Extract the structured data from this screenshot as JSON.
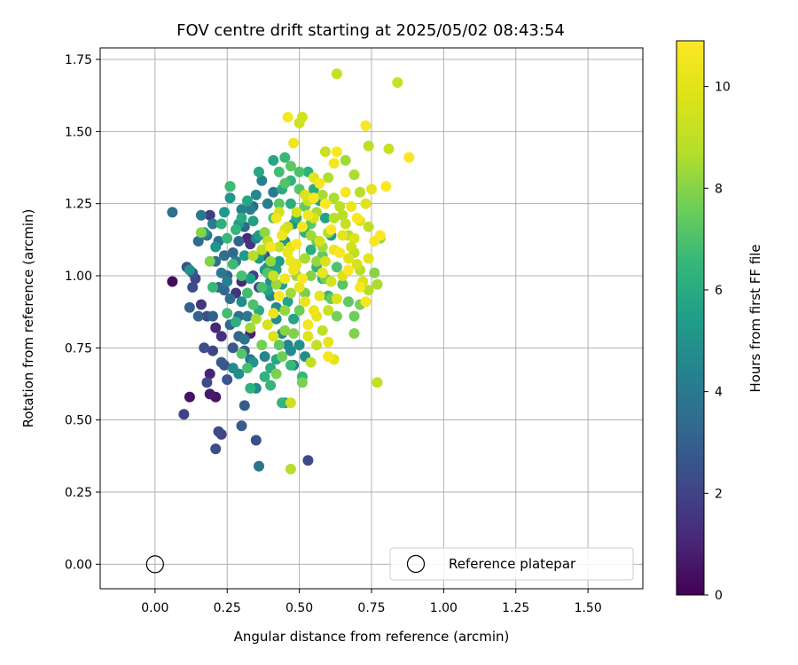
{
  "chart_data": {
    "type": "scatter",
    "title": "FOV centre drift starting at 2025/05/02 08:43:54",
    "xlabel": "Angular distance from reference (arcmin)",
    "ylabel": "Rotation from reference (arcmin)",
    "xlim": [
      -0.19,
      1.69
    ],
    "ylim": [
      -0.085,
      1.79
    ],
    "x_ticks": [
      "0.00",
      "0.25",
      "0.50",
      "0.75",
      "1.00",
      "1.25",
      "1.50"
    ],
    "y_ticks": [
      "0.00",
      "0.25",
      "0.50",
      "0.75",
      "1.00",
      "1.25",
      "1.50",
      "1.75"
    ],
    "grid": true,
    "colorbar": {
      "label": "Hours from first FF file",
      "range": [
        0,
        10.9
      ],
      "ticks": [
        "0",
        "2",
        "4",
        "6",
        "8",
        "10"
      ],
      "colormap": "viridis"
    },
    "legend": {
      "placement": "lower-right",
      "entries": [
        {
          "label": "Reference platepar",
          "marker": "open-circle",
          "color": "#000000"
        }
      ]
    },
    "reference_point": {
      "x": 0.0,
      "y": 0.0
    },
    "points": [
      [
        0.06,
        0.98,
        0.3
      ],
      [
        0.12,
        0.58,
        0.5
      ],
      [
        0.19,
        0.59,
        0.7
      ],
      [
        0.21,
        0.58,
        0.6
      ],
      [
        0.19,
        0.66,
        1.0
      ],
      [
        0.26,
        1.31,
        0.9
      ],
      [
        0.3,
        0.98,
        1.2
      ],
      [
        0.33,
        0.8,
        0.9
      ],
      [
        0.21,
        0.82,
        1.1
      ],
      [
        0.23,
        0.79,
        1.4
      ],
      [
        0.28,
        0.94,
        1.5
      ],
      [
        0.32,
        1.13,
        1.1
      ],
      [
        0.33,
        1.11,
        1.6
      ],
      [
        0.16,
        0.9,
        1.6
      ],
      [
        0.1,
        0.52,
        2.0
      ],
      [
        0.22,
        0.46,
        2.2
      ],
      [
        0.23,
        0.45,
        2.0
      ],
      [
        0.21,
        0.4,
        2.3
      ],
      [
        0.53,
        0.36,
        2.2
      ],
      [
        0.35,
        0.43,
        2.4
      ],
      [
        0.18,
        0.63,
        2.2
      ],
      [
        0.2,
        0.74,
        2.0
      ],
      [
        0.13,
        0.96,
        2.2
      ],
      [
        0.11,
        1.03,
        2.4
      ],
      [
        0.13,
        1.01,
        2.6
      ],
      [
        0.18,
        0.86,
        2.4
      ],
      [
        0.24,
        0.69,
        2.5
      ],
      [
        0.27,
        0.75,
        2.7
      ],
      [
        0.3,
        0.48,
        2.8
      ],
      [
        0.31,
        0.55,
        2.9
      ],
      [
        0.12,
        0.89,
        3.0
      ],
      [
        0.15,
        0.86,
        3.1
      ],
      [
        0.2,
        0.86,
        3.0
      ],
      [
        0.22,
        0.96,
        3.2
      ],
      [
        0.25,
        1.0,
        3.1
      ],
      [
        0.27,
        1.08,
        3.3
      ],
      [
        0.29,
        1.12,
        3.2
      ],
      [
        0.31,
        1.17,
        3.3
      ],
      [
        0.34,
        1.24,
        3.4
      ],
      [
        0.06,
        1.22,
        3.6
      ],
      [
        0.15,
        1.12,
        3.5
      ],
      [
        0.18,
        1.14,
        3.7
      ],
      [
        0.21,
        1.05,
        3.6
      ],
      [
        0.24,
        0.95,
        3.4
      ],
      [
        0.26,
        0.92,
        3.5
      ],
      [
        0.29,
        0.86,
        3.6
      ],
      [
        0.31,
        0.78,
        3.7
      ],
      [
        0.33,
        0.71,
        3.8
      ],
      [
        0.36,
        0.34,
        3.8
      ],
      [
        0.16,
        1.21,
        4.0
      ],
      [
        0.2,
        1.18,
        4.1
      ],
      [
        0.23,
        1.01,
        4.0
      ],
      [
        0.25,
        0.98,
        4.2
      ],
      [
        0.28,
        1.05,
        4.1
      ],
      [
        0.3,
        1.23,
        4.3
      ],
      [
        0.33,
        1.23,
        4.2
      ],
      [
        0.35,
        1.13,
        4.4
      ],
      [
        0.37,
        1.08,
        4.3
      ],
      [
        0.39,
        1.03,
        4.5
      ],
      [
        0.4,
        0.93,
        4.4
      ],
      [
        0.42,
        0.89,
        4.6
      ],
      [
        0.27,
        0.68,
        4.7
      ],
      [
        0.29,
        0.66,
        4.8
      ],
      [
        0.35,
        0.61,
        4.6
      ],
      [
        0.38,
        0.72,
        4.5
      ],
      [
        0.45,
        0.56,
        4.8
      ],
      [
        0.47,
        0.74,
        4.7
      ],
      [
        0.5,
        0.76,
        4.9
      ],
      [
        0.52,
        0.72,
        4.8
      ],
      [
        0.12,
        1.02,
        5.0
      ],
      [
        0.17,
        1.15,
        5.2
      ],
      [
        0.21,
        1.1,
        5.1
      ],
      [
        0.24,
        1.22,
        5.3
      ],
      [
        0.26,
        1.27,
        5.2
      ],
      [
        0.29,
        1.18,
        5.4
      ],
      [
        0.31,
        1.07,
        5.3
      ],
      [
        0.33,
        0.99,
        5.5
      ],
      [
        0.36,
        1.06,
        5.4
      ],
      [
        0.38,
        1.15,
        5.6
      ],
      [
        0.4,
        1.1,
        5.5
      ],
      [
        0.42,
        1.02,
        5.7
      ],
      [
        0.44,
        0.97,
        5.6
      ],
      [
        0.46,
        0.91,
        5.8
      ],
      [
        0.48,
        0.85,
        5.7
      ],
      [
        0.36,
        1.36,
        5.9
      ],
      [
        0.41,
        1.4,
        5.8
      ],
      [
        0.44,
        1.3,
        6.0
      ],
      [
        0.47,
        1.25,
        6.1
      ],
      [
        0.49,
        1.2,
        6.0
      ],
      [
        0.52,
        1.15,
        6.2
      ],
      [
        0.54,
        1.09,
        6.1
      ],
      [
        0.56,
        1.03,
        6.3
      ],
      [
        0.58,
        0.99,
        6.2
      ],
      [
        0.6,
        0.93,
        6.4
      ],
      [
        0.33,
        0.61,
        6.3
      ],
      [
        0.4,
        0.62,
        6.5
      ],
      [
        0.44,
        0.56,
        6.4
      ],
      [
        0.47,
        0.69,
        6.6
      ],
      [
        0.51,
        0.65,
        6.5
      ],
      [
        0.26,
        1.31,
        6.7
      ],
      [
        0.2,
        0.96,
        6.6
      ],
      [
        0.25,
        0.87,
        6.8
      ],
      [
        0.27,
        1.04,
        6.7
      ],
      [
        0.3,
        1.0,
        6.9
      ],
      [
        0.32,
        0.94,
        6.8
      ],
      [
        0.34,
        0.9,
        7.0
      ],
      [
        0.37,
        0.96,
        6.9
      ],
      [
        0.39,
        1.01,
        7.1
      ],
      [
        0.41,
        1.2,
        7.0
      ],
      [
        0.43,
        1.25,
        7.2
      ],
      [
        0.45,
        1.32,
        7.1
      ],
      [
        0.47,
        1.38,
        7.3
      ],
      [
        0.5,
        1.3,
        7.2
      ],
      [
        0.52,
        1.24,
        7.4
      ],
      [
        0.54,
        1.18,
        7.3
      ],
      [
        0.56,
        1.12,
        7.5
      ],
      [
        0.58,
        1.07,
        7.4
      ],
      [
        0.59,
        0.99,
        7.6
      ],
      [
        0.61,
        0.92,
        7.5
      ],
      [
        0.63,
        0.86,
        7.7
      ],
      [
        0.42,
        0.66,
        7.8
      ],
      [
        0.44,
        0.72,
        7.6
      ],
      [
        0.48,
        0.8,
        7.9
      ],
      [
        0.51,
        0.63,
        7.8
      ],
      [
        0.69,
        0.8,
        7.9
      ],
      [
        0.16,
        1.15,
        8.0
      ],
      [
        0.19,
        1.05,
        7.9
      ],
      [
        0.38,
        1.15,
        8.1
      ],
      [
        0.4,
        1.05,
        8.2
      ],
      [
        0.42,
        0.97,
        8.3
      ],
      [
        0.45,
        0.88,
        8.2
      ],
      [
        0.47,
        0.94,
        8.4
      ],
      [
        0.49,
        1.0,
        8.3
      ],
      [
        0.52,
        1.06,
        8.5
      ],
      [
        0.54,
        1.14,
        8.4
      ],
      [
        0.56,
        1.22,
        8.6
      ],
      [
        0.58,
        1.28,
        8.5
      ],
      [
        0.6,
        1.34,
        8.7
      ],
      [
        0.62,
        1.27,
        8.6
      ],
      [
        0.65,
        1.21,
        8.8
      ],
      [
        0.67,
        1.14,
        8.7
      ],
      [
        0.69,
        1.08,
        8.9
      ],
      [
        0.71,
        1.02,
        8.8
      ],
      [
        0.74,
        0.95,
        8.7
      ],
      [
        0.77,
        0.97,
        8.6
      ],
      [
        0.47,
        0.33,
        8.8
      ],
      [
        0.54,
        0.7,
        9.0
      ],
      [
        0.56,
        0.76,
        9.1
      ],
      [
        0.58,
        0.81,
        9.0
      ],
      [
        0.6,
        0.88,
        9.2
      ],
      [
        0.77,
        0.63,
        9.1
      ],
      [
        0.74,
        1.17,
        9.0
      ],
      [
        0.81,
        1.44,
        9.2
      ],
      [
        0.84,
        1.67,
        9.3
      ],
      [
        0.63,
        1.7,
        9.2
      ],
      [
        0.74,
        1.45,
        9.0
      ],
      [
        0.59,
        1.43,
        9.3
      ],
      [
        0.5,
        1.53,
        9.4
      ],
      [
        0.51,
        1.55,
        9.5
      ],
      [
        0.53,
        1.26,
        9.4
      ],
      [
        0.55,
        1.2,
        9.6
      ],
      [
        0.57,
        1.12,
        9.5
      ],
      [
        0.59,
        1.05,
        9.7
      ],
      [
        0.61,
        0.98,
        9.6
      ],
      [
        0.63,
        0.92,
        9.8
      ],
      [
        0.65,
        1.0,
        9.7
      ],
      [
        0.67,
        1.06,
        9.9
      ],
      [
        0.69,
        1.13,
        9.8
      ],
      [
        0.71,
        1.19,
        10.0
      ],
      [
        0.73,
        1.25,
        9.9
      ],
      [
        0.75,
        1.3,
        10.1
      ],
      [
        0.62,
        0.71,
        10.0
      ],
      [
        0.6,
        0.77,
        10.2
      ],
      [
        0.56,
        0.86,
        10.1
      ],
      [
        0.52,
        0.91,
        10.3
      ],
      [
        0.5,
        0.96,
        10.2
      ],
      [
        0.48,
        1.02,
        10.4
      ],
      [
        0.46,
        1.08,
        10.3
      ],
      [
        0.44,
        1.14,
        10.5
      ],
      [
        0.42,
        1.2,
        10.4
      ],
      [
        0.4,
        1.1,
        10.6
      ],
      [
        0.48,
        1.46,
        10.5
      ],
      [
        0.46,
        1.55,
        10.7
      ],
      [
        0.62,
        1.39,
        10.6
      ],
      [
        0.63,
        1.43,
        10.8
      ],
      [
        0.66,
        1.29,
        10.7
      ],
      [
        0.7,
        1.2,
        10.8
      ],
      [
        0.73,
        1.52,
        10.8
      ],
      [
        0.8,
        1.31,
        10.9
      ],
      [
        0.88,
        1.41,
        10.8
      ],
      [
        0.78,
        1.14,
        10.9
      ],
      [
        0.76,
        1.12,
        10.7
      ],
      [
        0.73,
        0.91,
        10.6
      ],
      [
        0.71,
        0.96,
        10.8
      ],
      [
        0.67,
        1.02,
        10.9
      ],
      [
        0.64,
        1.08,
        10.7
      ],
      [
        0.61,
        1.16,
        10.8
      ],
      [
        0.59,
        1.25,
        10.9
      ],
      [
        0.57,
        1.32,
        10.6
      ],
      [
        0.55,
        1.27,
        10.8
      ],
      [
        0.53,
        1.21,
        10.5
      ],
      [
        0.51,
        1.17,
        10.7
      ],
      [
        0.49,
        1.11,
        10.9
      ],
      [
        0.47,
        1.05,
        10.4
      ],
      [
        0.45,
        0.99,
        10.6
      ],
      [
        0.43,
        0.93,
        10.8
      ],
      [
        0.41,
        0.87,
        10.3
      ],
      [
        0.6,
        0.72,
        10.5
      ],
      [
        0.58,
        1.01,
        10.2
      ],
      [
        0.62,
        1.09,
        10.4
      ],
      [
        0.65,
        1.14,
        10.1
      ],
      [
        0.68,
        1.24,
        10.3
      ],
      [
        0.55,
        1.34,
        10.0
      ],
      [
        0.52,
        1.28,
        9.8
      ],
      [
        0.49,
        1.22,
        9.6
      ],
      [
        0.46,
        1.17,
        9.4
      ],
      [
        0.43,
        1.1,
        9.2
      ],
      [
        0.37,
        1.09,
        9.0
      ],
      [
        0.34,
        1.07,
        8.8
      ],
      [
        0.47,
        0.56,
        9.4
      ],
      [
        0.39,
        0.83,
        9.6
      ],
      [
        0.41,
        0.79,
        9.8
      ],
      [
        0.53,
        0.79,
        9.9
      ],
      [
        0.35,
        0.85,
        8.6
      ],
      [
        0.33,
        0.82,
        8.4
      ],
      [
        0.45,
        0.81,
        8.0
      ],
      [
        0.37,
        0.76,
        7.7
      ],
      [
        0.43,
        0.76,
        7.4
      ],
      [
        0.3,
        0.73,
        7.2
      ],
      [
        0.32,
        0.68,
        6.9
      ],
      [
        0.28,
        0.84,
        6.2
      ],
      [
        0.36,
        0.88,
        6.0
      ],
      [
        0.39,
        0.95,
        5.8
      ],
      [
        0.43,
        1.05,
        5.4
      ],
      [
        0.45,
        1.12,
        5.1
      ],
      [
        0.48,
        1.18,
        4.9
      ],
      [
        0.35,
        1.28,
        4.6
      ],
      [
        0.37,
        1.33,
        4.4
      ],
      [
        0.39,
        1.25,
        4.2
      ],
      [
        0.41,
        1.29,
        4.0
      ],
      [
        0.22,
        1.12,
        3.8
      ],
      [
        0.24,
        1.07,
        3.6
      ],
      [
        0.26,
        0.83,
        3.4
      ],
      [
        0.29,
        0.79,
        3.2
      ],
      [
        0.31,
        0.74,
        3.0
      ],
      [
        0.23,
        0.7,
        2.8
      ],
      [
        0.25,
        0.64,
        2.6
      ],
      [
        0.17,
        0.75,
        2.4
      ],
      [
        0.14,
        0.99,
        2.1
      ],
      [
        0.19,
        1.21,
        1.8
      ],
      [
        0.34,
        1.0,
        1.9
      ],
      [
        0.36,
        0.96,
        2.1
      ],
      [
        0.38,
        1.07,
        2.3
      ],
      [
        0.5,
        0.88,
        7.6
      ],
      [
        0.52,
        0.94,
        7.8
      ],
      [
        0.54,
        1.0,
        8.0
      ],
      [
        0.56,
        1.05,
        8.2
      ],
      [
        0.58,
        1.1,
        8.4
      ],
      [
        0.6,
        1.15,
        8.6
      ],
      [
        0.62,
        1.2,
        8.8
      ],
      [
        0.64,
        1.24,
        9.0
      ],
      [
        0.66,
        1.18,
        9.2
      ],
      [
        0.68,
        1.1,
        9.4
      ],
      [
        0.7,
        1.04,
        9.6
      ],
      [
        0.72,
        0.98,
        9.8
      ],
      [
        0.74,
        1.06,
        10.0
      ],
      [
        0.57,
        0.93,
        10.2
      ],
      [
        0.55,
        0.88,
        10.4
      ],
      [
        0.53,
        0.83,
        10.6
      ],
      [
        0.51,
        0.99,
        10.8
      ],
      [
        0.49,
        1.04,
        10.1
      ],
      [
        0.47,
        1.1,
        9.9
      ],
      [
        0.45,
        1.16,
        9.7
      ],
      [
        0.43,
        1.22,
        9.5
      ],
      [
        0.41,
        1.0,
        9.3
      ],
      [
        0.39,
        1.12,
        9.1
      ],
      [
        0.5,
        1.36,
        7.0
      ],
      [
        0.43,
        1.36,
        6.8
      ],
      [
        0.45,
        1.41,
        6.6
      ],
      [
        0.47,
        1.33,
        6.4
      ],
      [
        0.53,
        1.36,
        6.2
      ],
      [
        0.55,
        1.3,
        6.0
      ],
      [
        0.57,
        1.26,
        5.8
      ],
      [
        0.59,
        1.2,
        5.6
      ],
      [
        0.61,
        1.14,
        5.4
      ],
      [
        0.63,
        1.03,
        7.0
      ],
      [
        0.65,
        0.97,
        7.2
      ],
      [
        0.67,
        0.91,
        7.4
      ],
      [
        0.69,
        0.86,
        7.6
      ],
      [
        0.71,
        0.9,
        7.8
      ],
      [
        0.76,
        1.01,
        8.0
      ],
      [
        0.78,
        1.13,
        8.2
      ],
      [
        0.66,
        1.4,
        8.4
      ],
      [
        0.69,
        1.35,
        8.6
      ],
      [
        0.71,
        1.29,
        8.8
      ],
      [
        0.28,
        1.16,
        6.4
      ],
      [
        0.25,
        1.13,
        6.6
      ],
      [
        0.23,
        1.18,
        6.2
      ],
      [
        0.3,
        1.2,
        6.0
      ],
      [
        0.32,
        1.26,
        5.8
      ],
      [
        0.34,
        1.19,
        5.6
      ],
      [
        0.36,
        1.14,
        5.4
      ],
      [
        0.38,
        1.02,
        5.2
      ],
      [
        0.4,
        0.98,
        5.0
      ],
      [
        0.42,
        0.85,
        4.8
      ],
      [
        0.44,
        0.8,
        4.6
      ],
      [
        0.46,
        0.76,
        4.4
      ],
      [
        0.48,
        0.69,
        4.2
      ],
      [
        0.42,
        0.71,
        5.9
      ],
      [
        0.4,
        0.68,
        6.1
      ],
      [
        0.38,
        0.65,
        6.3
      ],
      [
        0.34,
        0.7,
        5.0
      ],
      [
        0.32,
        0.86,
        4.0
      ],
      [
        0.3,
        0.91,
        4.8
      ]
    ]
  }
}
